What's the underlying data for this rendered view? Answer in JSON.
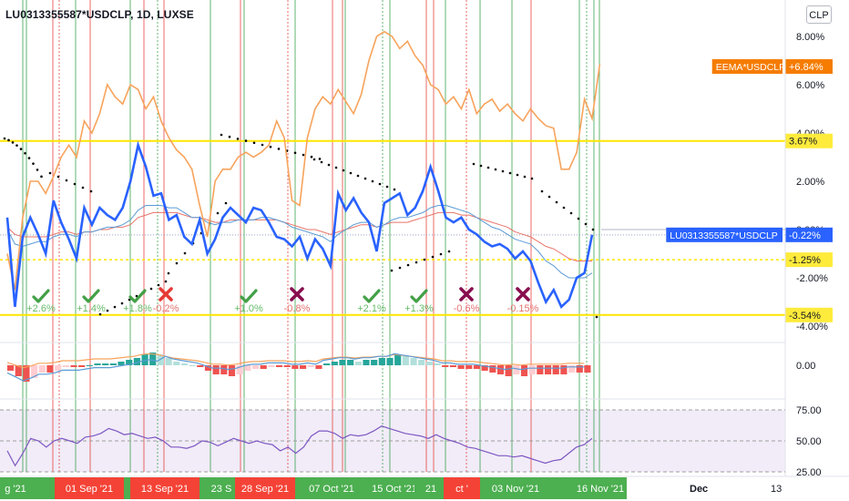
{
  "header": {
    "symbol_title": "LU0313355587*USDCLP, 1D, LUXSE",
    "currency_button": "CLP"
  },
  "colors": {
    "main_line": "#2962ff",
    "orange_line": "#f7a35c",
    "ema_fast": "#5b9bd5",
    "ema_slow": "#e8746a",
    "yellow_level": "#ffe600",
    "green_vline": "#2e9e44",
    "red_vline": "#e53935",
    "check": "#43a047",
    "cross": "#880e4f",
    "label_orange": "#f57c00",
    "label_blue": "#2962ff",
    "label_yellow": "#ffeb3b",
    "macd_pos_strong": "#26a69a",
    "macd_pos_weak": "#b2dfdb",
    "macd_neg_strong": "#ef5350",
    "macd_neg_weak": "#ffcdd2",
    "rsi_band": "#ede7f6",
    "rsi_line": "#7e57c2",
    "axis_green": "#4caf50",
    "axis_red": "#f44336"
  },
  "chart_data": {
    "type": "line",
    "title": "LU0313355587*USDCLP, 1D, LUXSE",
    "y_axis": {
      "unit": "%",
      "ticks": [
        "8.00%",
        "6.00%",
        "4.00%",
        "2.00%",
        "0.00%",
        "-2.00%",
        "-4.00%"
      ],
      "range": [
        -4.6,
        8.8
      ]
    },
    "price_labels": [
      {
        "text": "EEMA*USDCLP",
        "value_text": "+6.84%",
        "value": 6.84,
        "color": "#f57c00"
      },
      {
        "text": "LU0313355587*USDCLP",
        "value_text": "-0.22%",
        "value": -0.22,
        "color": "#2962ff"
      },
      {
        "text": "",
        "value_text": "3.67%",
        "value": 3.67,
        "color": "#ffeb3b"
      },
      {
        "text": "",
        "value_text": "-1.25%",
        "value": -1.25,
        "color": "#ffeb3b"
      },
      {
        "text": "",
        "value_text": "-3.54%",
        "value": -3.54,
        "color": "#ffeb3b"
      }
    ],
    "horizontal_levels": [
      {
        "value": 3.67,
        "style": "solid"
      },
      {
        "value": -1.25,
        "style": "dotted"
      },
      {
        "value": -3.54,
        "style": "solid"
      }
    ],
    "series": [
      {
        "name": "LU0313355587*USDCLP",
        "values": [
          0.5,
          -3.2,
          -0.3,
          0.5,
          -0.2,
          -1.0,
          1.2,
          0.3,
          -0.4,
          -1.2,
          0.9,
          0.2,
          0.9,
          0.6,
          0.4,
          0.9,
          2.0,
          3.5,
          2.6,
          1.4,
          1.5,
          0.4,
          0.6,
          -0.3,
          -0.6,
          0.4,
          -1.0,
          -0.4,
          0.5,
          0.9,
          0.6,
          0.3,
          0.9,
          0.8,
          0.3,
          -0.3,
          -0.4,
          -0.7,
          -0.3,
          -1.2,
          -0.4,
          -0.8,
          -1.5,
          1.5,
          0.8,
          1.3,
          0.7,
          0.3,
          -0.9,
          1.1,
          1.3,
          1.5,
          0.6,
          0.9,
          1.6,
          2.6,
          1.6,
          0.5,
          0.3,
          0.5,
          0.0,
          -0.2,
          -0.5,
          -0.7,
          -0.6,
          -0.8,
          -1.2,
          -0.9,
          -1.3,
          -2.2,
          -3.0,
          -2.5,
          -3.2,
          -2.9,
          -2.0,
          -1.8,
          -0.22
        ]
      },
      {
        "name": "EEMA*USDCLP",
        "values": [
          -1.0,
          -2.5,
          0.5,
          2.0,
          2.0,
          1.5,
          2.2,
          3.0,
          3.5,
          3.0,
          4.5,
          4.0,
          4.8,
          6.0,
          5.5,
          5.2,
          6.0,
          5.8,
          5.0,
          5.5,
          4.5,
          3.8,
          3.3,
          3.0,
          2.5,
          1.0,
          -0.3,
          2.0,
          2.5,
          2.5,
          3.0,
          3.2,
          3.0,
          3.2,
          3.5,
          4.5,
          3.8,
          1.2,
          1.0,
          3.8,
          5.0,
          5.5,
          5.2,
          5.8,
          5.3,
          4.8,
          5.6,
          7.0,
          8.0,
          8.2,
          8.0,
          7.5,
          7.8,
          7.2,
          6.8,
          6.0,
          5.8,
          5.2,
          5.5,
          5.0,
          5.8,
          4.8,
          5.2,
          5.4,
          4.9,
          5.2,
          4.8,
          4.5,
          5.0,
          4.6,
          4.3,
          4.2,
          2.5,
          2.5,
          3.2,
          5.4,
          4.6,
          6.84
        ]
      }
    ],
    "ema_series": [
      {
        "values": [
          0.0,
          -0.6,
          -0.7,
          -0.6,
          -0.5,
          -0.5,
          -0.3,
          -0.2,
          -0.2,
          -0.3,
          -0.1,
          -0.1,
          0.0,
          0.1,
          0.1,
          0.2,
          0.4,
          0.8,
          1.0,
          1.0,
          1.0,
          0.9,
          0.9,
          0.7,
          0.5,
          0.5,
          0.3,
          0.2,
          0.3,
          0.3,
          0.4,
          0.4,
          0.4,
          0.5,
          0.5,
          0.4,
          0.3,
          0.1,
          0.0,
          -0.1,
          -0.2,
          -0.3,
          -0.5,
          -0.2,
          0.0,
          0.2,
          0.3,
          0.3,
          0.1,
          0.2,
          0.4,
          0.5,
          0.5,
          0.6,
          0.7,
          0.9,
          1.0,
          1.0,
          0.9,
          0.8,
          0.7,
          0.5,
          0.3,
          0.1,
          0.0,
          -0.2,
          -0.4,
          -0.5,
          -0.6,
          -0.9,
          -1.3,
          -1.5,
          -1.8,
          -2.0,
          -2.0,
          -2.0,
          -1.8
        ]
      },
      {
        "values": [
          0.1,
          -0.2,
          -0.3,
          -0.3,
          -0.3,
          -0.3,
          -0.2,
          -0.1,
          -0.1,
          -0.2,
          -0.1,
          -0.1,
          0.0,
          0.0,
          0.1,
          0.1,
          0.2,
          0.5,
          0.6,
          0.7,
          0.7,
          0.7,
          0.7,
          0.6,
          0.5,
          0.5,
          0.4,
          0.3,
          0.3,
          0.4,
          0.4,
          0.4,
          0.4,
          0.4,
          0.4,
          0.4,
          0.3,
          0.2,
          0.1,
          0.0,
          0.0,
          -0.1,
          -0.2,
          -0.1,
          0.0,
          0.1,
          0.2,
          0.2,
          0.1,
          0.2,
          0.3,
          0.3,
          0.3,
          0.4,
          0.5,
          0.6,
          0.7,
          0.7,
          0.7,
          0.6,
          0.6,
          0.5,
          0.4,
          0.3,
          0.2,
          0.1,
          -0.1,
          -0.2,
          -0.3,
          -0.5,
          -0.7,
          -0.8,
          -1.0,
          -1.2,
          -1.3,
          -1.3,
          -1.3
        ]
      }
    ],
    "signals": [
      {
        "type": "check",
        "label": "+2.6%"
      },
      {
        "type": "check",
        "label": "+1.4%"
      },
      {
        "type": "check",
        "label": "+1.8%"
      },
      {
        "type": "cross",
        "label": "-0.2%"
      },
      {
        "type": "check",
        "label": "+1.0%"
      },
      {
        "type": "cross",
        "label": "-0.8%"
      },
      {
        "type": "check",
        "label": "+2.1%"
      },
      {
        "type": "check",
        "label": "+1.3%"
      },
      {
        "type": "cross",
        "label": "-0.6%"
      },
      {
        "type": "cross",
        "label": "-0.15%"
      }
    ],
    "macd": {
      "ticks": [
        "0.00"
      ],
      "histogram": [
        -0.3,
        -0.6,
        -0.9,
        -0.7,
        -0.4,
        -0.4,
        -0.3,
        -0.1,
        -0.1,
        -0.1,
        0.0,
        0.1,
        0.1,
        0.1,
        0.2,
        0.3,
        0.4,
        0.6,
        0.7,
        0.6,
        0.4,
        0.2,
        0.1,
        0.0,
        -0.1,
        -0.3,
        -0.5,
        -0.5,
        -0.6,
        -0.5,
        -0.3,
        -0.2,
        -0.2,
        -0.1,
        -0.1,
        -0.1,
        -0.2,
        -0.2,
        -0.1,
        -0.2,
        0.1,
        0.2,
        0.3,
        0.3,
        0.2,
        0.3,
        0.3,
        0.4,
        0.4,
        0.6,
        0.5,
        0.4,
        0.3,
        0.2,
        0.1,
        -0.1,
        -0.1,
        -0.2,
        -0.2,
        -0.2,
        -0.3,
        -0.4,
        -0.5,
        -0.6,
        -0.5,
        -0.6,
        -0.5,
        -0.5,
        -0.5,
        -0.5,
        -0.5,
        -0.4,
        -0.4,
        -0.4
      ]
    },
    "rsi": {
      "ticks": [
        "75.00",
        "50.00",
        "25.00"
      ],
      "values": [
        42,
        30,
        40,
        52,
        50,
        45,
        50,
        52,
        50,
        48,
        53,
        54,
        56,
        60,
        58,
        55,
        56,
        54,
        52,
        53,
        50,
        45,
        45,
        44,
        46,
        50,
        49,
        46,
        49,
        52,
        50,
        48,
        50,
        48,
        47,
        42,
        45,
        40,
        45,
        54,
        58,
        58,
        56,
        52,
        55,
        54,
        55,
        58,
        62,
        60,
        58,
        56,
        55,
        54,
        52,
        55,
        52,
        50,
        48,
        45,
        44,
        42,
        40,
        38,
        38,
        37,
        38,
        36,
        34,
        32,
        34,
        35,
        40,
        45,
        47,
        52
      ]
    },
    "x_axis": {
      "labels": [
        {
          "text": "g '21",
          "bg": "green"
        },
        {
          "text": "01 Sep '21",
          "bg": "red"
        },
        {
          "text": "13 Sep '21",
          "bg": "red"
        },
        {
          "text": "23 S",
          "bg": "green"
        },
        {
          "text": "28 Sep '21",
          "bg": "red"
        },
        {
          "text": "07 Oct '21",
          "bg": "green"
        },
        {
          "text": "15 Oct '21",
          "bg": "green"
        },
        {
          "text": "21",
          "bg": "green"
        },
        {
          "text": "ct '",
          "bg": "red"
        },
        {
          "text": "03 Nov '21",
          "bg": "green"
        },
        {
          "text": "16 Nov '21",
          "bg": "green"
        },
        {
          "text": "Dec",
          "bg": "none"
        },
        {
          "text": "13",
          "bg": "none"
        }
      ]
    }
  }
}
